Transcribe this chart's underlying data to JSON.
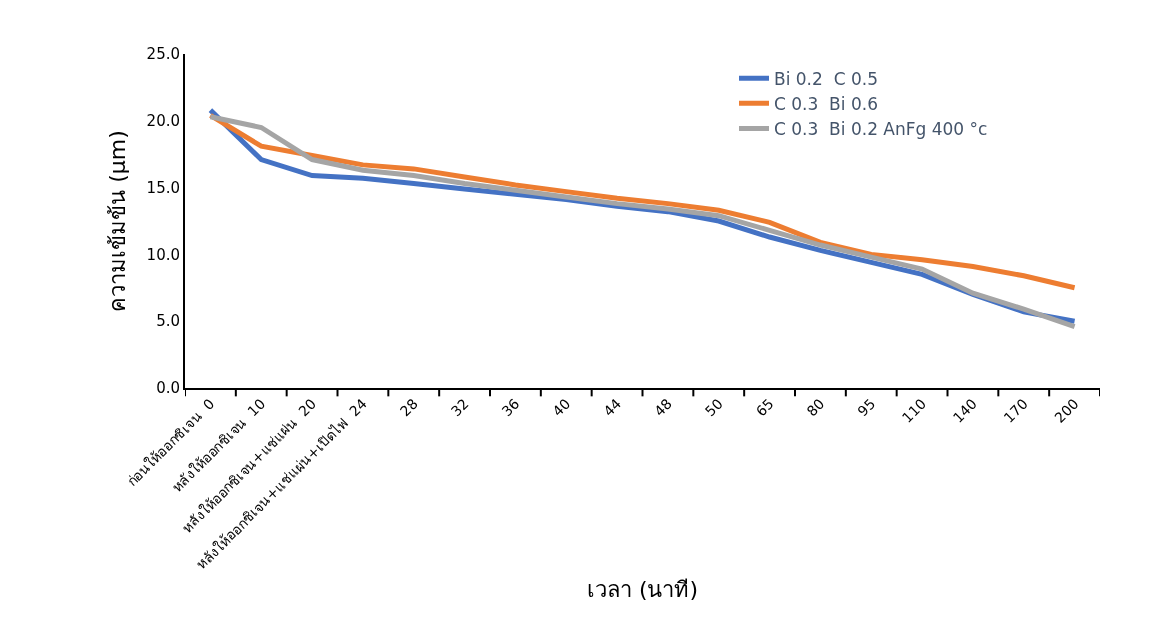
{
  "chart_data": {
    "type": "line",
    "xlabel": "เวลา (นาที)",
    "ylabel": "ความเข้มข้น (µm)",
    "categories": [
      "ก่อนให้ออกซิเจน  0",
      "หลังให้ออกซิเจน  10",
      "หลังให้ออกซิเจน+แช่แผ่น  20",
      "หลังให้ออกซิเจน+แช่แผ่น+เปิดไฟ  24",
      "28",
      "32",
      "36",
      "40",
      "44",
      "48",
      "50",
      "65",
      "80",
      "95",
      "110",
      "140",
      "170",
      "200"
    ],
    "series": [
      {
        "name": "Bi 0.2  C 0.5",
        "color": "#4472c4",
        "values": [
          20.8,
          17.1,
          15.9,
          15.7,
          15.3,
          14.9,
          14.5,
          14.1,
          13.6,
          13.2,
          12.5,
          11.3,
          10.3,
          9.4,
          8.5,
          7.0,
          5.7,
          5.0
        ]
      },
      {
        "name": "C 0.3  Bi 0.6",
        "color": "#ed7d31",
        "values": [
          20.4,
          18.1,
          17.4,
          16.7,
          16.4,
          15.8,
          15.2,
          14.7,
          14.2,
          13.8,
          13.3,
          12.4,
          10.9,
          10.0,
          9.6,
          9.1,
          8.4,
          7.5
        ]
      },
      {
        "name": "C 0.3  Bi 0.2 AnFg 400 °c",
        "color": "#a5a5a5",
        "values": [
          20.3,
          19.5,
          17.1,
          16.3,
          15.9,
          15.3,
          14.8,
          14.3,
          13.8,
          13.4,
          12.9,
          11.8,
          10.7,
          9.8,
          8.9,
          7.1,
          5.9,
          4.6
        ]
      }
    ],
    "ylim": [
      0,
      25
    ],
    "yticks": [
      {
        "value": 0,
        "label": "0.0"
      },
      {
        "value": 5,
        "label": "5.0"
      },
      {
        "value": 10,
        "label": "10.0"
      },
      {
        "value": 15,
        "label": "15.0"
      },
      {
        "value": 20,
        "label": "20.0"
      },
      {
        "value": 25,
        "label": "25.0"
      }
    ],
    "grid": false,
    "legend": "top right",
    "marker": "none",
    "line_style": "solid"
  }
}
